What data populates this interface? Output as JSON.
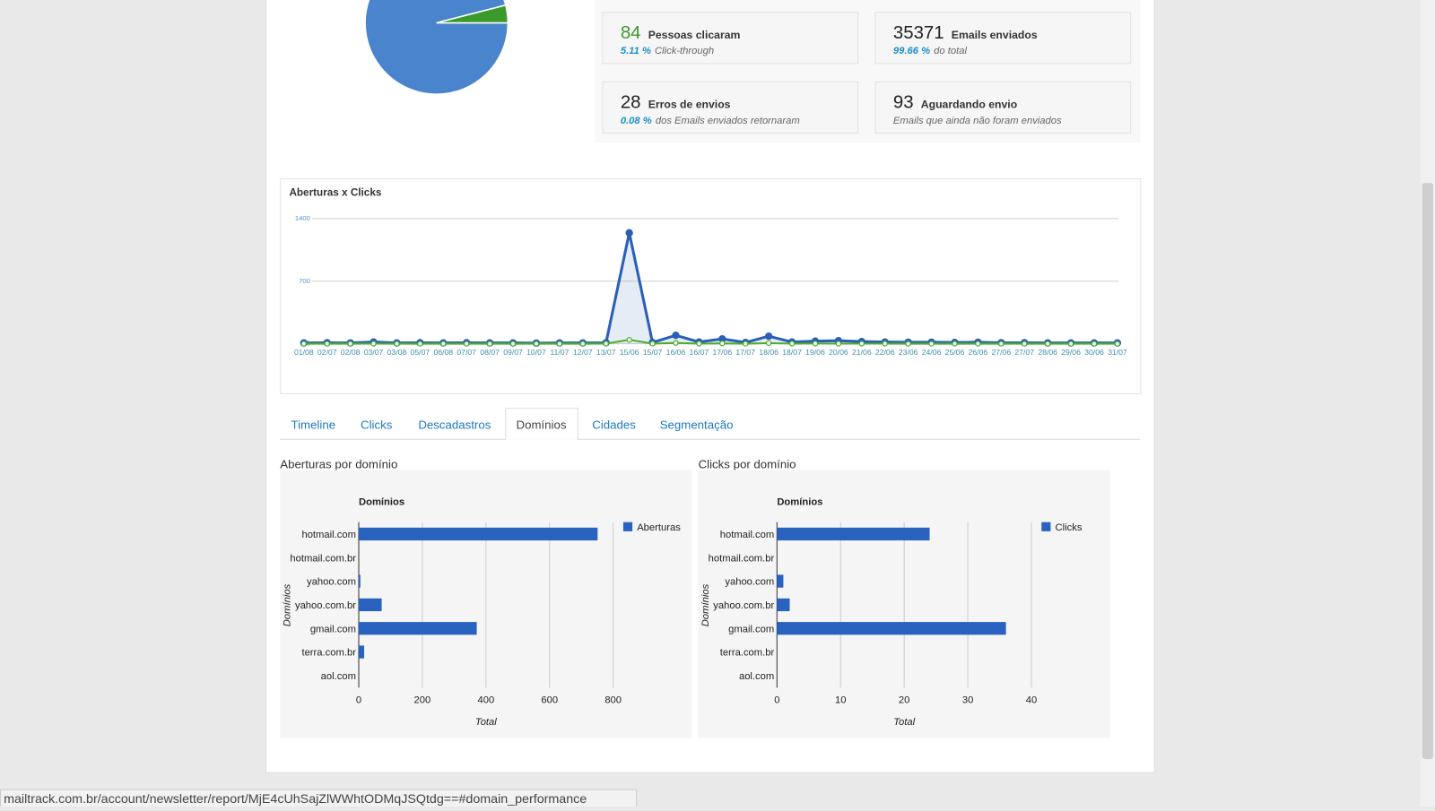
{
  "stats": [
    {
      "value": 84,
      "label": "Pessoas clicaram",
      "rate": "5.11 %",
      "note": "Click-through",
      "color": "#3c9a2c"
    },
    {
      "value": 35371,
      "label": "Emails enviados",
      "rate": "99.66 %",
      "note": "do total",
      "color": "#222222"
    },
    {
      "value": 28,
      "label": "Erros de envios",
      "rate": "0.08 %",
      "note": "dos Emails enviados retornaram",
      "color": "#222222"
    },
    {
      "value": 93,
      "label": "Aguardando envio",
      "note": "Emails que ainda não foram enviados",
      "color": "#222222"
    }
  ],
  "chart_data": [
    {
      "type": "pie",
      "values": [
        96,
        4
      ],
      "colors": [
        "#4a84cc",
        "#3c9a2c"
      ]
    },
    {
      "type": "line",
      "title": "Aberturas x Clicks",
      "categories": [
        "01/08",
        "02/07",
        "02/08",
        "03/07",
        "03/08",
        "05/07",
        "06/08",
        "07/07",
        "08/07",
        "09/07",
        "10/07",
        "11/07",
        "12/07",
        "13/07",
        "15/06",
        "15/07",
        "16/06",
        "16/07",
        "17/06",
        "17/07",
        "18/06",
        "18/07",
        "19/06",
        "20/06",
        "21/06",
        "22/06",
        "23/06",
        "24/06",
        "25/06",
        "26/06",
        "27/06",
        "27/07",
        "28/06",
        "29/06",
        "30/06",
        "31/07"
      ],
      "series": [
        {
          "color": "#2a5fb8",
          "values": [
            10,
            12,
            10,
            20,
            10,
            12,
            10,
            12,
            10,
            10,
            8,
            10,
            10,
            12,
            1240,
            15,
            95,
            20,
            55,
            15,
            85,
            20,
            30,
            35,
            25,
            20,
            18,
            18,
            15,
            18,
            12,
            12,
            10,
            10,
            10,
            10
          ]
        },
        {
          "color": "#4caf2a",
          "values": [
            1,
            1,
            1,
            2,
            1,
            1,
            1,
            1,
            1,
            1,
            1,
            1,
            1,
            2,
            45,
            2,
            10,
            2,
            5,
            1,
            8,
            2,
            3,
            2,
            2,
            2,
            1,
            1,
            1,
            1,
            1,
            1,
            1,
            1,
            1,
            1
          ]
        }
      ],
      "ylim": [
        0,
        1400
      ],
      "yticks": [
        0,
        700,
        1400
      ],
      "grid": true
    },
    {
      "type": "bar",
      "orientation": "horizontal",
      "title": "Aberturas por domínio",
      "subtitle": "Domínios",
      "y_label": "Domínios",
      "x_label": "Total",
      "categories": [
        "hotmail.com",
        "hotmail.com.br",
        "yahoo.com",
        "yahoo.com.br",
        "gmail.com",
        "terra.com.br",
        "aol.com"
      ],
      "series": [
        {
          "name": "Aberturas",
          "color": "#2a62bf",
          "values": [
            751,
            0,
            5,
            72,
            371,
            17,
            0
          ]
        }
      ],
      "xlim": [
        0,
        800
      ],
      "xticks": [
        0,
        200,
        400,
        600,
        800
      ],
      "grid": true,
      "legend": "right"
    },
    {
      "type": "bar",
      "orientation": "horizontal",
      "title": "Clicks por domínio",
      "subtitle": "Domínios",
      "y_label": "Domínios",
      "x_label": "Total",
      "categories": [
        "hotmail.com",
        "hotmail.com.br",
        "yahoo.com",
        "yahoo.com.br",
        "gmail.com",
        "terra.com.br",
        "aol.com"
      ],
      "series": [
        {
          "name": "Clicks",
          "color": "#2a62bf",
          "values": [
            24,
            0,
            1,
            2,
            36,
            0,
            0
          ]
        }
      ],
      "xlim": [
        0,
        40
      ],
      "xticks": [
        0,
        10,
        20,
        30,
        40
      ],
      "grid": true,
      "legend": "right"
    }
  ],
  "tabs": {
    "items": [
      "Timeline",
      "Clicks",
      "Descadastros",
      "Domínios",
      "Cidades",
      "Segmentação"
    ],
    "active": 3
  },
  "status_url": "mailtrack.com.br/account/newsletter/report/MjE4cUhSajZlWWhtODMqJSQtdg==#domain_performance"
}
